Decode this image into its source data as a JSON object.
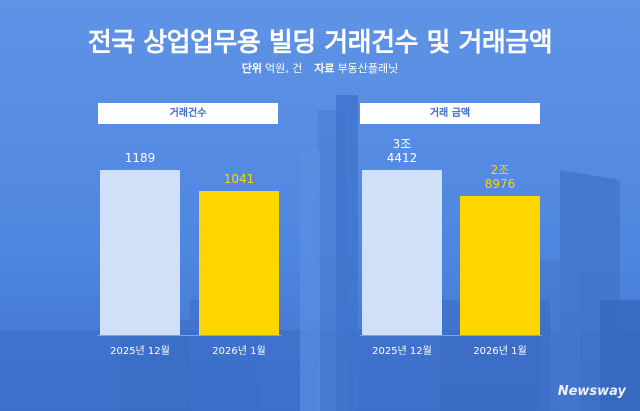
{
  "title": "전국 상업업무용 빌딩 거래건수 및 거래금액",
  "subtitle": {
    "unit_label": "단위",
    "unit_value": "억원, 건",
    "source_label": "자료",
    "source_value": "부동산플래닛"
  },
  "watermark": "Newsway",
  "colors": {
    "prev_bar": "#cfe0f8",
    "curr_bar": "#fdd600",
    "curr_value": "#fdd600",
    "prev_value": "#ffffff"
  },
  "chart_data": [
    {
      "type": "bar",
      "title": "거래건수",
      "categories": [
        "2025년 12월",
        "2026년 1월"
      ],
      "values": [
        1189,
        1041
      ],
      "value_labels": [
        [
          "1189"
        ],
        [
          "1041"
        ]
      ]
    },
    {
      "type": "bar",
      "title": "거래 금액",
      "categories": [
        "2025년 12월",
        "2026년 1월"
      ],
      "values": [
        34412,
        28976
      ],
      "value_labels": [
        [
          "3조",
          "4412"
        ],
        [
          "2조",
          "8976"
        ]
      ]
    }
  ]
}
